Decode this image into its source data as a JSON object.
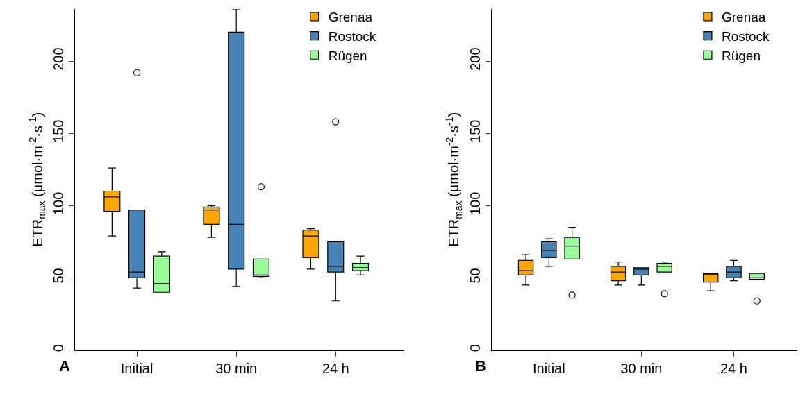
{
  "chart_data": [
    {
      "type": "box",
      "categories": [
        "Initial",
        "30 min",
        "24 h"
      ],
      "ylabel": "ETR$_{max}$ (µmol·m$^{-2}$·s$^{-1}$)",
      "ylim": [
        0,
        236
      ],
      "yticks": [
        0,
        50,
        100,
        150,
        200
      ],
      "legend": "top right",
      "annotations": [
        "A"
      ],
      "series": [
        {
          "name": "Grenaa",
          "color": "#ffa500",
          "boxes": [
            {
              "low": 79,
              "q1": 96,
              "median": 106,
              "q3": 110,
              "high": 126
            },
            {
              "low": 78,
              "q1": 87,
              "median": 97,
              "q3": 99,
              "high": 100
            },
            {
              "low": 56,
              "q1": 64,
              "median": 79,
              "q3": 83,
              "high": 84
            }
          ]
        },
        {
          "name": "Rostock",
          "color": "#4682b4",
          "boxes": [
            {
              "low": 43,
              "q1": 50,
              "median": 54,
              "q3": 97,
              "high": 97,
              "outliers": [
                192
              ]
            },
            {
              "low": 44,
              "q1": 56,
              "median": 87,
              "q3": 220,
              "high": 236
            },
            {
              "low": 34,
              "q1": 54,
              "median": 58,
              "q3": 75,
              "high": 75,
              "outliers": [
                158
              ]
            }
          ]
        },
        {
          "name": "Rügen",
          "color": "#98fb98",
          "boxes": [
            {
              "low": 40,
              "q1": 40,
              "median": 46,
              "q3": 65,
              "high": 68
            },
            {
              "low": 50,
              "q1": 51,
              "median": 52,
              "q3": 63,
              "high": 63,
              "outliers": [
                113
              ]
            },
            {
              "low": 52,
              "q1": 55,
              "median": 57,
              "q3": 60,
              "high": 65
            }
          ]
        }
      ]
    },
    {
      "type": "box",
      "categories": [
        "Initial",
        "30 min",
        "24 h"
      ],
      "ylabel": "ETR$_{max}$ (µmol·m$^{-2}$·s$^{-1}$)",
      "ylim": [
        0,
        236
      ],
      "yticks": [
        0,
        50,
        100,
        150,
        200
      ],
      "legend": "top right",
      "annotations": [
        "B"
      ],
      "series": [
        {
          "name": "Grenaa",
          "color": "#ffa500",
          "boxes": [
            {
              "low": 45,
              "q1": 52,
              "median": 55,
              "q3": 62,
              "high": 66
            },
            {
              "low": 45,
              "q1": 48,
              "median": 54,
              "q3": 58,
              "high": 61
            },
            {
              "low": 41,
              "q1": 47,
              "median": 53,
              "q3": 53,
              "high": 53
            }
          ]
        },
        {
          "name": "Rostock",
          "color": "#4682b4",
          "boxes": [
            {
              "low": 58,
              "q1": 64,
              "median": 69,
              "q3": 75,
              "high": 77
            },
            {
              "low": 45,
              "q1": 52,
              "median": 56,
              "q3": 57,
              "high": 57
            },
            {
              "low": 48,
              "q1": 50,
              "median": 54,
              "q3": 58,
              "high": 62
            }
          ]
        },
        {
          "name": "Rügen",
          "color": "#98fb98",
          "boxes": [
            {
              "low": 63,
              "q1": 63,
              "median": 72,
              "q3": 78,
              "high": 85,
              "outliers": [
                38
              ]
            },
            {
              "low": 54,
              "q1": 54,
              "median": 58,
              "q3": 60,
              "high": 61,
              "outliers": [
                39
              ]
            },
            {
              "low": 49,
              "q1": 49,
              "median": 50,
              "q3": 53,
              "high": 53,
              "outliers": [
                34
              ]
            }
          ]
        }
      ]
    }
  ]
}
